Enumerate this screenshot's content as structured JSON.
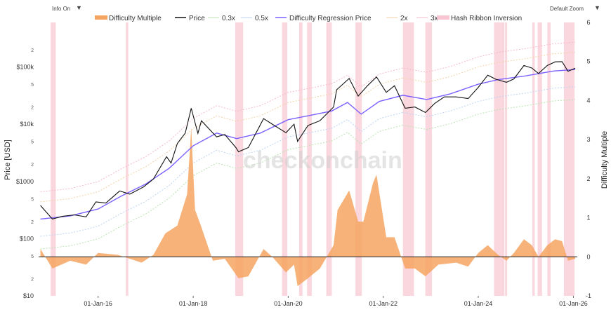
{
  "toolbar": {
    "info_label": "Info On",
    "zoom_label": "Default Zoom",
    "caret": "▼"
  },
  "title_fragment": "...ulty Regression ... Hash Ribbon Inversions ...",
  "watermark": "checkonchain",
  "colors": {
    "difficulty_multiple": "#f5a460",
    "price": "#111111",
    "regression": "#7b61ff",
    "band_03": "#b9e3b0",
    "band_05": "#bcd3f2",
    "band_2": "#f2d2a4",
    "band_3": "#f6b8c8",
    "ribbon": "#f8c6d2",
    "zero_line": "#222222"
  },
  "chart_data": {
    "type": "line",
    "x_axis": {
      "ticks": [
        "01-Jan-16",
        "01-Jan-18",
        "01-Jan-20",
        "01-Jan-22",
        "01-Jan-24",
        "01-Jan-26"
      ],
      "range": [
        "2014-10-01",
        "2026-01-31"
      ]
    },
    "y_left": {
      "label": "Price [USD]",
      "scale": "log",
      "range": [
        10,
        600000
      ],
      "major_ticks": [
        {
          "v": 10,
          "label": "$10"
        },
        {
          "v": 100,
          "label": "$100"
        },
        {
          "v": 1000,
          "label": "$1000"
        },
        {
          "v": 10000,
          "label": "$10k"
        },
        {
          "v": 100000,
          "label": "$100k"
        }
      ],
      "minor_ticks": [
        {
          "v": 20,
          "label": "2"
        },
        {
          "v": 50,
          "label": "5"
        },
        {
          "v": 200,
          "label": "2"
        },
        {
          "v": 500,
          "label": "5"
        },
        {
          "v": 2000,
          "label": "2"
        },
        {
          "v": 5000,
          "label": "5"
        },
        {
          "v": 20000,
          "label": "2"
        },
        {
          "v": 50000,
          "label": "5"
        },
        {
          "v": 200000,
          "label": "2"
        }
      ]
    },
    "y_right": {
      "label": "Difficulty Multiple",
      "range": [
        -1,
        6
      ],
      "ticks": [
        "-1",
        "0",
        "1",
        "2",
        "3",
        "4",
        "5",
        "6"
      ]
    },
    "legend": [
      {
        "key": "dm",
        "label": "Difficulty Multiple"
      },
      {
        "key": "price",
        "label": "Price"
      },
      {
        "key": "b03",
        "label": "0.3x"
      },
      {
        "key": "b05",
        "label": "0.5x"
      },
      {
        "key": "reg",
        "label": "Difficulty Regression Price"
      },
      {
        "key": "b2",
        "label": "2x"
      },
      {
        "key": "b3",
        "label": "3x"
      },
      {
        "key": "ribbon",
        "label": "Hash Ribbon Inversion"
      }
    ],
    "price_series": [
      [
        "2014-10-15",
        380
      ],
      [
        "2015-01-15",
        220
      ],
      [
        "2015-04-01",
        245
      ],
      [
        "2015-07-01",
        260
      ],
      [
        "2015-10-01",
        240
      ],
      [
        "2015-12-15",
        440
      ],
      [
        "2016-03-01",
        420
      ],
      [
        "2016-06-15",
        680
      ],
      [
        "2016-09-01",
        600
      ],
      [
        "2016-12-15",
        800
      ],
      [
        "2017-03-01",
        1100
      ],
      [
        "2017-06-10",
        2700
      ],
      [
        "2017-07-15",
        2100
      ],
      [
        "2017-09-01",
        4600
      ],
      [
        "2017-11-01",
        7000
      ],
      [
        "2017-12-17",
        19000
      ],
      [
        "2018-02-06",
        6900
      ],
      [
        "2018-03-05",
        11500
      ],
      [
        "2018-06-30",
        6000
      ],
      [
        "2018-09-01",
        6600
      ],
      [
        "2018-11-25",
        3900
      ],
      [
        "2018-12-15",
        3300
      ],
      [
        "2019-03-01",
        3900
      ],
      [
        "2019-06-26",
        12500
      ],
      [
        "2019-09-01",
        10000
      ],
      [
        "2019-12-15",
        7100
      ],
      [
        "2020-02-15",
        10000
      ],
      [
        "2020-03-13",
        5000
      ],
      [
        "2020-06-01",
        9500
      ],
      [
        "2020-09-01",
        11500
      ],
      [
        "2020-12-15",
        20000
      ],
      [
        "2021-01-08",
        40000
      ],
      [
        "2021-04-14",
        63000
      ],
      [
        "2021-06-22",
        31000
      ],
      [
        "2021-09-01",
        47000
      ],
      [
        "2021-11-10",
        67000
      ],
      [
        "2022-01-24",
        36000
      ],
      [
        "2022-03-28",
        47000
      ],
      [
        "2022-06-18",
        19000
      ],
      [
        "2022-09-01",
        20000
      ],
      [
        "2022-11-21",
        16000
      ],
      [
        "2023-01-31",
        23000
      ],
      [
        "2023-04-15",
        30000
      ],
      [
        "2023-07-15",
        30000
      ],
      [
        "2023-10-15",
        28000
      ],
      [
        "2024-01-01",
        44000
      ],
      [
        "2024-03-14",
        72000
      ],
      [
        "2024-05-15",
        61000
      ],
      [
        "2024-08-05",
        54000
      ],
      [
        "2024-10-01",
        62000
      ],
      [
        "2024-12-17",
        106000
      ],
      [
        "2025-02-15",
        96000
      ],
      [
        "2025-04-08",
        77000
      ],
      [
        "2025-06-15",
        106000
      ],
      [
        "2025-08-14",
        123000
      ],
      [
        "2025-10-06",
        124000
      ],
      [
        "2025-11-21",
        84000
      ],
      [
        "2026-01-15",
        95000
      ]
    ],
    "regression_series": [
      [
        "2014-10-15",
        220
      ],
      [
        "2015-06-01",
        250
      ],
      [
        "2016-01-01",
        330
      ],
      [
        "2016-07-01",
        560
      ],
      [
        "2017-01-01",
        900
      ],
      [
        "2017-07-01",
        1700
      ],
      [
        "2018-01-01",
        4200
      ],
      [
        "2018-07-01",
        7000
      ],
      [
        "2018-12-01",
        5600
      ],
      [
        "2019-06-01",
        7000
      ],
      [
        "2020-01-01",
        12000
      ],
      [
        "2020-06-01",
        14000
      ],
      [
        "2020-12-01",
        17000
      ],
      [
        "2021-04-01",
        24000
      ],
      [
        "2021-07-15",
        15000
      ],
      [
        "2021-12-01",
        25000
      ],
      [
        "2022-06-01",
        32000
      ],
      [
        "2022-12-01",
        27000
      ],
      [
        "2023-06-01",
        34000
      ],
      [
        "2024-01-01",
        50000
      ],
      [
        "2024-06-01",
        60000
      ],
      [
        "2025-01-01",
        70000
      ],
      [
        "2025-08-01",
        85000
      ],
      [
        "2026-01-15",
        90000
      ]
    ],
    "band_multipliers": {
      "b03": 0.3,
      "b05": 0.5,
      "b2": 2,
      "b3": 3
    },
    "difficulty_multiple_series": [
      [
        "2014-10-15",
        0.2
      ],
      [
        "2015-01-15",
        -0.3
      ],
      [
        "2015-06-01",
        -0.1
      ],
      [
        "2015-10-01",
        -0.2
      ],
      [
        "2016-01-01",
        0.1
      ],
      [
        "2016-06-01",
        0.05
      ],
      [
        "2016-12-01",
        -0.15
      ],
      [
        "2017-03-01",
        0.05
      ],
      [
        "2017-06-01",
        0.6
      ],
      [
        "2017-09-01",
        0.8
      ],
      [
        "2017-11-15",
        1.6
      ],
      [
        "2017-12-17",
        3.3
      ],
      [
        "2018-01-15",
        1.2
      ],
      [
        "2018-03-01",
        0.8
      ],
      [
        "2018-06-01",
        -0.1
      ],
      [
        "2018-09-01",
        -0.05
      ],
      [
        "2018-12-15",
        -0.55
      ],
      [
        "2019-03-01",
        -0.5
      ],
      [
        "2019-06-26",
        0.2
      ],
      [
        "2019-09-01",
        0.0
      ],
      [
        "2019-12-15",
        -0.4
      ],
      [
        "2020-02-15",
        -0.2
      ],
      [
        "2020-03-13",
        -0.75
      ],
      [
        "2020-06-01",
        -0.55
      ],
      [
        "2020-09-01",
        -0.3
      ],
      [
        "2020-12-15",
        0.3
      ],
      [
        "2021-01-15",
        1.2
      ],
      [
        "2021-04-14",
        1.7
      ],
      [
        "2021-06-22",
        0.9
      ],
      [
        "2021-08-01",
        0.9
      ],
      [
        "2021-10-15",
        1.9
      ],
      [
        "2021-11-10",
        2.1
      ],
      [
        "2022-01-24",
        0.5
      ],
      [
        "2022-03-28",
        0.5
      ],
      [
        "2022-06-18",
        -0.3
      ],
      [
        "2022-09-01",
        -0.3
      ],
      [
        "2022-11-21",
        -0.5
      ],
      [
        "2023-03-01",
        -0.2
      ],
      [
        "2023-07-15",
        -0.15
      ],
      [
        "2023-10-15",
        -0.25
      ],
      [
        "2024-01-01",
        0.1
      ],
      [
        "2024-03-14",
        0.3
      ],
      [
        "2024-06-01",
        0.05
      ],
      [
        "2024-08-05",
        -0.1
      ],
      [
        "2024-10-01",
        0.1
      ],
      [
        "2024-12-17",
        0.45
      ],
      [
        "2025-02-15",
        0.3
      ],
      [
        "2025-04-08",
        0.0
      ],
      [
        "2025-06-15",
        0.3
      ],
      [
        "2025-08-14",
        0.45
      ],
      [
        "2025-10-06",
        0.4
      ],
      [
        "2025-11-21",
        -0.1
      ],
      [
        "2026-01-15",
        -0.05
      ]
    ],
    "hash_ribbon_inversions": [
      [
        "2015-01-01",
        "2015-02-10"
      ],
      [
        "2016-08-01",
        "2016-08-20"
      ],
      [
        "2018-11-20",
        "2019-01-20"
      ],
      [
        "2019-11-15",
        "2019-12-25"
      ],
      [
        "2020-03-25",
        "2020-04-20"
      ],
      [
        "2020-05-25",
        "2020-06-30"
      ],
      [
        "2020-10-20",
        "2020-12-01"
      ],
      [
        "2021-06-01",
        "2021-07-20"
      ],
      [
        "2022-06-01",
        "2022-08-25"
      ],
      [
        "2022-11-20",
        "2023-01-10"
      ],
      [
        "2024-05-01",
        "2024-07-20"
      ],
      [
        "2024-07-25",
        "2024-08-10"
      ],
      [
        "2025-02-20",
        "2025-03-10"
      ],
      [
        "2025-04-01",
        "2025-05-05"
      ],
      [
        "2025-06-15",
        "2025-07-10"
      ],
      [
        "2025-10-20",
        "2026-01-10"
      ]
    ]
  }
}
